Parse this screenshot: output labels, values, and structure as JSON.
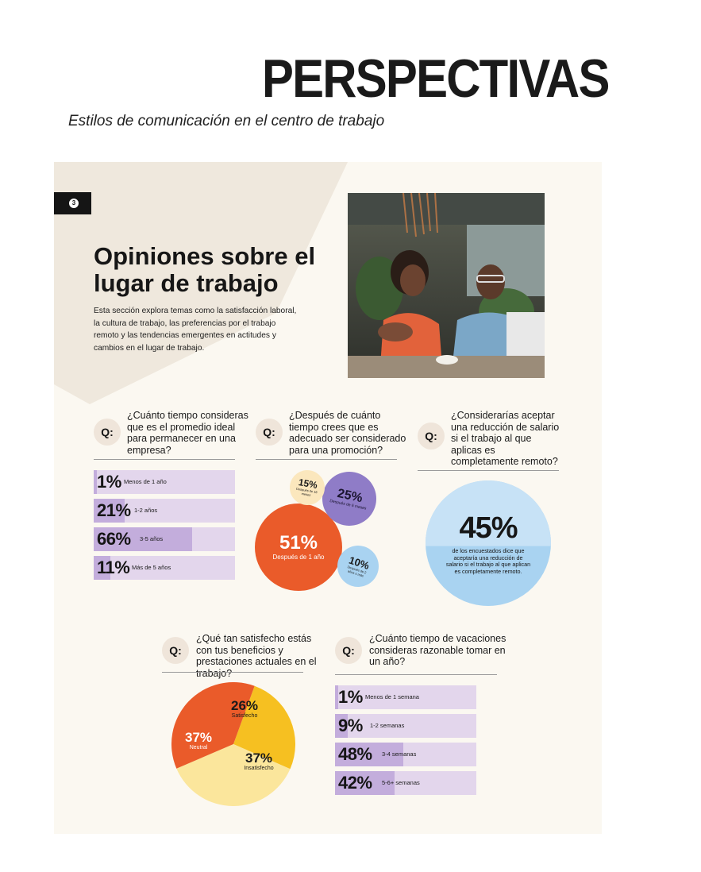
{
  "header": {
    "title": "PERSPECTIVAS",
    "subtitle": "Estilos de comunicación en el centro de trabajo"
  },
  "section": {
    "number": "3",
    "title": "Opiniones sobre el lugar de trabajo",
    "intro": "Esta sección explora temas como la satisfacción laboral, la cultura de trabajo, las preferencias por el trabajo remoto y las tendencias emergentes en actitudes y cambios en el lugar de trabajo."
  },
  "q_badge": "Q:",
  "q1": {
    "question": "¿Cuánto tiempo consideras que es el promedio ideal para permanecer en una empresa?",
    "rows": [
      {
        "value": "1%",
        "pct": 1,
        "label": "Menos de 1 año"
      },
      {
        "value": "21%",
        "pct": 21,
        "label": "1-2 años"
      },
      {
        "value": "66%",
        "pct": 66,
        "label": "3-5 años"
      },
      {
        "value": "11%",
        "pct": 11,
        "label": "Más de 5 años"
      }
    ]
  },
  "q2": {
    "question": "¿Después de cuánto tiempo crees que es adecuado ser considerado para una promoción?",
    "bubbles": [
      {
        "value": "51%",
        "label": "Después de 1 año"
      },
      {
        "value": "25%",
        "label": "Después de 6 meses"
      },
      {
        "value": "15%",
        "label": "Después de 18 meses"
      },
      {
        "value": "10%",
        "label": "Después de 2 años o más"
      }
    ]
  },
  "q3": {
    "question": "¿Considerarías aceptar una reducción de salario si el trabajo al que aplicas es completamente remoto?",
    "value": "45%",
    "fill_pct": 45,
    "description": "de los encuestados dice que aceptaría una reducción de salario si el trabajo al que aplican es completamente remoto."
  },
  "q4": {
    "question": "¿Qué tan satisfecho estás con tus beneficios y prestaciones actuales en el trabajo?",
    "slices": [
      {
        "value": "26%",
        "pct": 26,
        "label": "Satisfecho",
        "color": "#f6c021"
      },
      {
        "value": "37%",
        "pct": 37,
        "label": "Insatisfecho",
        "color": "#fbe69c"
      },
      {
        "value": "37%",
        "pct": 37,
        "label": "Neutral",
        "color": "#ea5b2a"
      }
    ]
  },
  "q5": {
    "question": "¿Cuánto tiempo de vacaciones consideras razonable tomar en un año?",
    "rows": [
      {
        "value": "1%",
        "pct": 1,
        "label": "Menos de 1 semana"
      },
      {
        "value": "9%",
        "pct": 9,
        "label": "1-2 semanas"
      },
      {
        "value": "48%",
        "pct": 48,
        "label": "3-4 semanas"
      },
      {
        "value": "42%",
        "pct": 42,
        "label": "5-6+ semanas"
      }
    ]
  },
  "colors": {
    "orange": "#ea5b2a",
    "purple": "#8f7cc7",
    "cream": "#fbe7bd",
    "blue": "#a9d3f1",
    "bar_bg": "#e3d6ec",
    "bar_fill": "#c3addc"
  }
}
